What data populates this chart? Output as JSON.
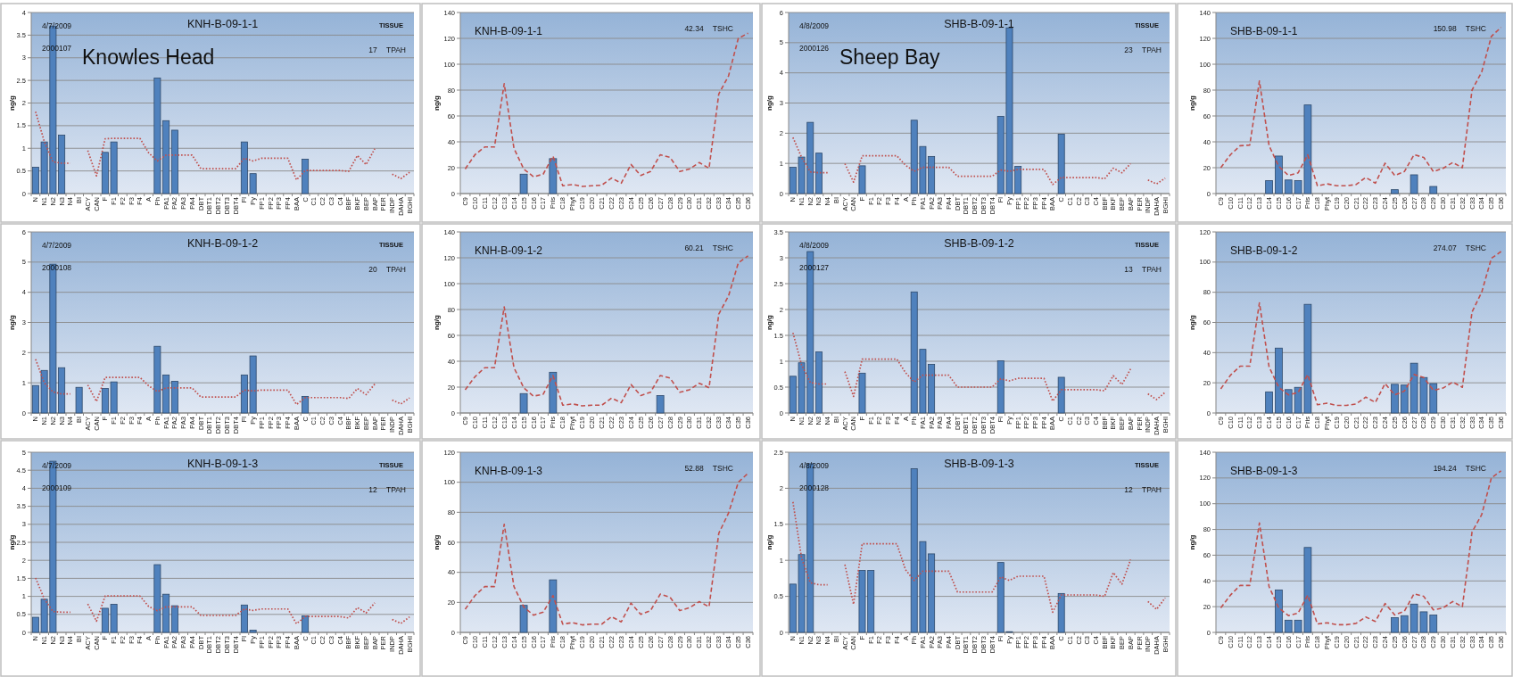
{
  "chart_data": [
    {
      "type": "bar",
      "title": "KNH-B-09-1-1",
      "ylabel": "ng/g",
      "annotations": [
        "4/7/2009",
        "2000107",
        "TISSUE",
        "17 TPAH",
        "Knowles Head"
      ],
      "categories": [
        "N",
        "N1",
        "N2",
        "N3",
        "N4",
        "BI",
        "ACY",
        "CAN",
        "F",
        "F1",
        "F2",
        "F3",
        "F4",
        "A",
        "Ph",
        "PA1",
        "PA2",
        "PA3",
        "PA4",
        "DBT",
        "DBT1",
        "DBT2",
        "DBT3",
        "DBT4",
        "Fl",
        "Py",
        "FP1",
        "FP2",
        "FP3",
        "FP4",
        "BAA",
        "C",
        "C1",
        "C2",
        "C3",
        "C4",
        "BBF",
        "BKF",
        "BEP",
        "BAP",
        "PER",
        "INDP",
        "DAHA",
        "BGHI"
      ],
      "series": [
        {
          "color": "#4f81bd",
          "values": [
            0.58,
            1.14,
            3.7,
            1.29,
            null,
            null,
            null,
            null,
            0.91,
            1.14,
            null,
            null,
            null,
            null,
            2.55,
            1.61,
            1.4,
            null,
            null,
            null,
            null,
            null,
            null,
            null,
            1.14,
            0.44,
            null,
            null,
            null,
            null,
            null,
            0.76,
            null,
            null,
            null,
            null,
            null,
            null,
            null,
            null,
            null,
            null,
            null,
            null
          ]
        },
        {
          "type": "line",
          "color": "#c0504d",
          "values": [
            1.81,
            1.15,
            0.7,
            0.67,
            0.67,
            null,
            0.95,
            0.39,
            1.21,
            1.22,
            1.22,
            1.22,
            1.22,
            0.9,
            0.72,
            0.85,
            0.85,
            0.85,
            0.85,
            0.55,
            0.55,
            0.55,
            0.55,
            0.55,
            0.78,
            0.72,
            0.78,
            0.78,
            0.78,
            0.78,
            0.3,
            0.51,
            0.51,
            0.51,
            0.51,
            0.51,
            0.49,
            0.84,
            0.64,
            0.99,
            null,
            0.43,
            0.33,
            0.47
          ]
        }
      ],
      "ylim": [
        0,
        4
      ],
      "yticks": [
        0,
        0.5,
        1,
        1.5,
        2,
        2.5,
        3,
        3.5,
        4
      ],
      "grid": "y",
      "line_style": "dotted"
    },
    {
      "type": "bar",
      "title": "KNH-B-09-1-1",
      "ylabel": "ng/g",
      "annotations": [
        "42.34 TSHC"
      ],
      "categories": [
        "C9",
        "C10",
        "C11",
        "C12",
        "C13",
        "C14",
        "C15",
        "C16",
        "C17",
        "Pris",
        "C18",
        "Phyt",
        "C19",
        "C20",
        "C21",
        "C22",
        "C23",
        "C24",
        "C25",
        "C26",
        "C27",
        "C28",
        "C29",
        "C30",
        "C31",
        "C32",
        "C33",
        "C34",
        "C35",
        "C36"
      ],
      "series": [
        {
          "color": "#4f81bd",
          "values": [
            null,
            null,
            null,
            null,
            null,
            null,
            15,
            null,
            null,
            27,
            null,
            null,
            null,
            null,
            null,
            null,
            null,
            null,
            null,
            null,
            null,
            null,
            null,
            null,
            null,
            null,
            null,
            null,
            null,
            null
          ]
        },
        {
          "type": "line",
          "color": "#c0504d",
          "values": [
            19,
            30,
            36,
            36,
            85,
            35,
            19,
            13,
            15,
            29,
            6,
            7,
            5.5,
            6,
            6.5,
            12,
            8,
            22.5,
            14,
            17,
            30,
            28,
            17,
            19,
            24,
            19.5,
            77,
            91,
            120,
            124
          ]
        }
      ],
      "ylim": [
        0,
        140
      ],
      "yticks": [
        0,
        20,
        40,
        60,
        80,
        100,
        120,
        140
      ],
      "grid": "y",
      "line_style": "dashed"
    },
    {
      "type": "bar",
      "title": "SHB-B-09-1-1",
      "ylabel": "ng/g",
      "annotations": [
        "4/8/2009",
        "2000126",
        "TISSUE",
        "23 TPAH",
        "Sheep Bay"
      ],
      "categories": [
        "N",
        "N1",
        "N2",
        "N3",
        "N4",
        "BI",
        "ACY",
        "CAN",
        "F",
        "F1",
        "F2",
        "F3",
        "F4",
        "A",
        "Ph",
        "PA1",
        "PA2",
        "PA3",
        "PA4",
        "DBT",
        "DBT1",
        "DBT2",
        "DBT3",
        "DBT4",
        "Fl",
        "Py",
        "FP1",
        "FP2",
        "FP3",
        "FP4",
        "BAA",
        "C",
        "C1",
        "C2",
        "C3",
        "C4",
        "BBF",
        "BKF",
        "BEP",
        "BAP",
        "PER",
        "INDP",
        "DAHA",
        "BGHI"
      ],
      "series": [
        {
          "color": "#4f81bd",
          "values": [
            0.87,
            1.21,
            2.36,
            1.34,
            null,
            null,
            null,
            null,
            0.92,
            null,
            null,
            null,
            null,
            null,
            2.43,
            1.56,
            1.23,
            null,
            null,
            null,
            null,
            null,
            null,
            null,
            2.56,
            5.49,
            0.9,
            null,
            null,
            null,
            null,
            1.97,
            null,
            null,
            null,
            null,
            null,
            null,
            null,
            null,
            null,
            null,
            null,
            null
          ]
        },
        {
          "type": "line",
          "color": "#c0504d",
          "values": [
            1.86,
            1.2,
            0.72,
            0.69,
            0.69,
            null,
            0.99,
            0.38,
            1.25,
            1.25,
            1.25,
            1.25,
            1.25,
            0.94,
            0.74,
            0.87,
            0.87,
            0.87,
            0.87,
            0.57,
            0.57,
            0.57,
            0.57,
            0.57,
            0.78,
            0.74,
            0.8,
            0.8,
            0.8,
            0.8,
            0.3,
            0.53,
            0.53,
            0.53,
            0.53,
            0.53,
            0.49,
            0.84,
            0.69,
            0.99,
            null,
            0.45,
            0.32,
            0.51
          ]
        }
      ],
      "ylim": [
        0,
        6
      ],
      "yticks": [
        0,
        1,
        2,
        3,
        4,
        5,
        6
      ],
      "grid": "y",
      "line_style": "dotted"
    },
    {
      "type": "bar",
      "title": "SHB-B-09-1-1",
      "ylabel": "ng/g",
      "annotations": [
        "150.98 TSHC"
      ],
      "categories": [
        "C9",
        "C10",
        "C11",
        "C12",
        "C13",
        "C14",
        "C15",
        "C16",
        "C17",
        "Pris",
        "C18",
        "Phyt",
        "C19",
        "C20",
        "C21",
        "C22",
        "C23",
        "C24",
        "C25",
        "C26",
        "C27",
        "C28",
        "C29",
        "C30",
        "C31",
        "C32",
        "C33",
        "C34",
        "C35",
        "C36"
      ],
      "series": [
        {
          "color": "#4f81bd",
          "values": [
            null,
            null,
            null,
            null,
            null,
            10,
            29,
            10.5,
            10,
            68.5,
            null,
            null,
            null,
            null,
            null,
            null,
            null,
            null,
            3,
            null,
            14.5,
            null,
            5.5,
            null,
            null,
            null,
            null,
            null,
            null,
            null
          ]
        },
        {
          "type": "line",
          "color": "#c0504d",
          "values": [
            20,
            30,
            37,
            37.5,
            87,
            37,
            21,
            14,
            16,
            30,
            6,
            7.5,
            6,
            6,
            7,
            12.5,
            8,
            23.5,
            14,
            17,
            30,
            28,
            17,
            19.5,
            24,
            20,
            80,
            94,
            121.5,
            128.5
          ]
        }
      ],
      "ylim": [
        0,
        140
      ],
      "yticks": [
        0,
        20,
        40,
        60,
        80,
        100,
        120,
        140
      ],
      "grid": "y",
      "line_style": "dashed"
    },
    {
      "type": "bar",
      "title": "KNH-B-09-1-2",
      "ylabel": "ng/g",
      "annotations": [
        "4/7/2009",
        "2000108",
        "TISSUE",
        "20 TPAH"
      ],
      "categories": [
        "N",
        "N1",
        "N2",
        "N3",
        "N4",
        "BI",
        "ACY",
        "CAN",
        "F",
        "F1",
        "F2",
        "F3",
        "F4",
        "A",
        "Ph",
        "PA1",
        "PA2",
        "PA3",
        "PA4",
        "DBT",
        "DBT1",
        "DBT2",
        "DBT3",
        "DBT4",
        "Fl",
        "Py",
        "FP1",
        "FP2",
        "FP3",
        "FP4",
        "BAA",
        "C",
        "C1",
        "C2",
        "C3",
        "C4",
        "BBF",
        "BKF",
        "BEP",
        "BAP",
        "PER",
        "INDP",
        "DAHA",
        "BGHI"
      ],
      "series": [
        {
          "color": "#4f81bd",
          "values": [
            0.91,
            1.41,
            4.93,
            1.5,
            null,
            0.85,
            null,
            null,
            0.81,
            1.03,
            null,
            null,
            null,
            null,
            2.21,
            1.26,
            1.05,
            null,
            null,
            null,
            null,
            null,
            null,
            null,
            1.26,
            1.89,
            null,
            null,
            null,
            null,
            null,
            0.55,
            null,
            null,
            null,
            null,
            null,
            null,
            null,
            null,
            null,
            null,
            null,
            null
          ]
        },
        {
          "type": "line",
          "color": "#c0504d",
          "values": [
            1.78,
            1.0,
            0.7,
            0.63,
            0.63,
            null,
            0.93,
            0.38,
            1.18,
            1.18,
            1.18,
            1.18,
            1.18,
            0.9,
            0.71,
            0.83,
            0.83,
            0.83,
            0.83,
            0.53,
            0.53,
            0.53,
            0.53,
            0.53,
            0.76,
            0.73,
            0.76,
            0.76,
            0.76,
            0.76,
            0.28,
            0.51,
            0.51,
            0.51,
            0.51,
            0.51,
            0.48,
            0.81,
            0.61,
            0.96,
            null,
            0.43,
            0.3,
            0.5
          ]
        }
      ],
      "ylim": [
        0,
        6
      ],
      "yticks": [
        0,
        1,
        2,
        3,
        4,
        5,
        6
      ],
      "grid": "y",
      "line_style": "dotted"
    },
    {
      "type": "bar",
      "title": "KNH-B-09-1-2",
      "ylabel": "ng/g",
      "annotations": [
        "60.21 TSHC"
      ],
      "categories": [
        "C9",
        "C10",
        "C11",
        "C12",
        "C13",
        "C14",
        "C15",
        "C16",
        "C17",
        "Pris",
        "C18",
        "Phyt",
        "C19",
        "C20",
        "C21",
        "C22",
        "C23",
        "C24",
        "C25",
        "C26",
        "C27",
        "C28",
        "C29",
        "C30",
        "C31",
        "C32",
        "C33",
        "C34",
        "C35",
        "C36"
      ],
      "series": [
        {
          "color": "#4f81bd",
          "values": [
            null,
            null,
            null,
            null,
            null,
            null,
            15,
            null,
            null,
            31.5,
            null,
            null,
            null,
            null,
            null,
            null,
            null,
            null,
            null,
            null,
            13.5,
            null,
            null,
            null,
            null,
            null,
            null,
            null,
            null,
            null
          ]
        },
        {
          "type": "line",
          "color": "#c0504d",
          "values": [
            18,
            28,
            35,
            35,
            82,
            35,
            19.5,
            13,
            14.5,
            29,
            6,
            7,
            5.5,
            6,
            6,
            11.5,
            8,
            22,
            13.5,
            16,
            29,
            27,
            16,
            18,
            23,
            19.5,
            76.5,
            90.5,
            116,
            121.5
          ]
        }
      ],
      "ylim": [
        0,
        140
      ],
      "yticks": [
        0,
        20,
        40,
        60,
        80,
        100,
        120,
        140
      ],
      "grid": "y",
      "line_style": "dashed"
    },
    {
      "type": "bar",
      "title": "SHB-B-09-1-2",
      "ylabel": "ng/g",
      "annotations": [
        "4/8/2009",
        "2000127",
        "TISSUE",
        "13 TPAH"
      ],
      "categories": [
        "N",
        "N1",
        "N2",
        "N3",
        "N4",
        "BI",
        "ACY",
        "CAN",
        "F",
        "F1",
        "F2",
        "F3",
        "F4",
        "A",
        "Ph",
        "PA1",
        "PA2",
        "PA3",
        "PA4",
        "DBT",
        "DBT1",
        "DBT2",
        "DBT3",
        "DBT4",
        "Fl",
        "Py",
        "FP1",
        "FP2",
        "FP3",
        "FP4",
        "BAA",
        "C",
        "C1",
        "C2",
        "C3",
        "C4",
        "BBF",
        "BKF",
        "BEP",
        "BAP",
        "PER",
        "INDP",
        "DAHA",
        "BGHI"
      ],
      "series": [
        {
          "color": "#4f81bd",
          "values": [
            0.71,
            0.97,
            3.12,
            1.18,
            null,
            null,
            null,
            null,
            0.77,
            null,
            null,
            null,
            null,
            null,
            2.34,
            1.23,
            0.94,
            null,
            null,
            null,
            null,
            null,
            null,
            null,
            1.01,
            null,
            null,
            null,
            null,
            null,
            null,
            0.69,
            null,
            null,
            null,
            null,
            null,
            null,
            null,
            null,
            null,
            null,
            null,
            null
          ]
        },
        {
          "type": "line",
          "color": "#c0504d",
          "values": [
            1.55,
            0.93,
            0.59,
            0.56,
            0.56,
            null,
            0.8,
            0.32,
            1.04,
            1.04,
            1.04,
            1.04,
            1.04,
            0.78,
            0.6,
            0.73,
            0.73,
            0.73,
            0.73,
            0.5,
            0.5,
            0.5,
            0.5,
            0.5,
            0.66,
            0.62,
            0.67,
            0.67,
            0.67,
            0.67,
            0.23,
            0.45,
            0.45,
            0.45,
            0.45,
            0.45,
            0.43,
            0.72,
            0.55,
            0.85,
            null,
            0.37,
            0.26,
            0.4
          ]
        }
      ],
      "ylim": [
        0,
        3.5
      ],
      "yticks": [
        0,
        0.5,
        1,
        1.5,
        2,
        2.5,
        3,
        3.5
      ],
      "grid": "y",
      "line_style": "dotted"
    },
    {
      "type": "bar",
      "title": "SHB-B-09-1-2",
      "ylabel": "ng/g",
      "annotations": [
        "274.07 TSHC"
      ],
      "categories": [
        "C9",
        "C10",
        "C11",
        "C12",
        "C13",
        "C14",
        "C15",
        "C16",
        "C17",
        "Pris",
        "C18",
        "Phyt",
        "C19",
        "C20",
        "C21",
        "C22",
        "C23",
        "C24",
        "C25",
        "C26",
        "C27",
        "C28",
        "C29",
        "C30",
        "C31",
        "C32",
        "C33",
        "C34",
        "C35",
        "C36"
      ],
      "series": [
        {
          "color": "#4f81bd",
          "values": [
            null,
            null,
            null,
            null,
            null,
            14,
            43,
            15.5,
            17,
            72,
            null,
            null,
            null,
            null,
            null,
            null,
            null,
            null,
            19,
            18.5,
            33,
            23.5,
            19.5,
            null,
            null,
            null,
            null,
            null,
            null,
            null
          ]
        },
        {
          "type": "line",
          "color": "#c0504d",
          "values": [
            16,
            25,
            31,
            31,
            73,
            30.5,
            17,
            12,
            13.5,
            25.5,
            5.5,
            6.5,
            5,
            5,
            6,
            10.5,
            7,
            19.5,
            12,
            14.5,
            25.5,
            23.5,
            15,
            16.5,
            20.5,
            17,
            67,
            80,
            102.5,
            107
          ]
        }
      ],
      "ylim": [
        0,
        120
      ],
      "yticks": [
        0,
        20,
        40,
        60,
        80,
        100,
        120
      ],
      "grid": "y",
      "line_style": "dashed"
    },
    {
      "type": "bar",
      "title": "KNH-B-09-1-3",
      "ylabel": "ng/g",
      "annotations": [
        "4/7/2009",
        "2000109",
        "TISSUE",
        "12 TPAH"
      ],
      "categories": [
        "N",
        "N1",
        "N2",
        "N3",
        "N4",
        "BI",
        "ACY",
        "CAN",
        "F",
        "F1",
        "F2",
        "F3",
        "F4",
        "A",
        "Ph",
        "PA1",
        "PA2",
        "PA3",
        "PA4",
        "DBT",
        "DBT1",
        "DBT2",
        "DBT3",
        "DBT4",
        "Fl",
        "Py",
        "FP1",
        "FP2",
        "FP3",
        "FP4",
        "BAA",
        "C",
        "C1",
        "C2",
        "C3",
        "C4",
        "BBF",
        "BKF",
        "BEP",
        "BAP",
        "PER",
        "INDP",
        "DAHA",
        "BGHI"
      ],
      "series": [
        {
          "color": "#4f81bd",
          "values": [
            0.42,
            0.92,
            4.75,
            null,
            null,
            null,
            null,
            null,
            0.67,
            0.78,
            null,
            null,
            null,
            null,
            1.88,
            1.06,
            0.74,
            null,
            null,
            null,
            null,
            null,
            null,
            null,
            0.76,
            0.06,
            null,
            null,
            null,
            null,
            null,
            0.46,
            null,
            null,
            null,
            null,
            null,
            null,
            null,
            null,
            null,
            null,
            null,
            null
          ]
        },
        {
          "type": "line",
          "color": "#c0504d",
          "values": [
            1.51,
            0.93,
            0.58,
            0.56,
            0.56,
            null,
            0.79,
            0.31,
            1.01,
            1.01,
            1.01,
            1.01,
            1.01,
            0.72,
            0.6,
            0.71,
            0.71,
            0.71,
            0.71,
            0.47,
            0.47,
            0.47,
            0.47,
            0.47,
            0.65,
            0.61,
            0.65,
            0.65,
            0.65,
            0.65,
            0.24,
            0.44,
            0.44,
            0.44,
            0.44,
            0.44,
            0.4,
            0.69,
            0.54,
            0.82,
            null,
            0.36,
            0.25,
            0.43
          ]
        }
      ],
      "ylim": [
        0,
        5
      ],
      "yticks": [
        0,
        0.5,
        1,
        1.5,
        2,
        2.5,
        3,
        3.5,
        4,
        4.5,
        5
      ],
      "grid": "y",
      "line_style": "dotted"
    },
    {
      "type": "bar",
      "title": "KNH-B-09-1-3",
      "ylabel": "ng/g",
      "annotations": [
        "52.88 TSHC"
      ],
      "categories": [
        "C9",
        "C10",
        "C11",
        "C12",
        "C13",
        "C14",
        "C15",
        "C16",
        "C17",
        "Pris",
        "C18",
        "Phyt",
        "C19",
        "C20",
        "C21",
        "C22",
        "C23",
        "C24",
        "C25",
        "C26",
        "C27",
        "C28",
        "C29",
        "C30",
        "C31",
        "C32",
        "C33",
        "C34",
        "C35",
        "C36"
      ],
      "series": [
        {
          "color": "#4f81bd",
          "values": [
            null,
            null,
            null,
            null,
            null,
            null,
            18,
            null,
            null,
            35,
            null,
            null,
            null,
            null,
            null,
            null,
            null,
            null,
            null,
            null,
            null,
            null,
            null,
            null,
            null,
            null,
            null,
            null,
            null,
            null
          ]
        },
        {
          "type": "line",
          "color": "#c0504d",
          "values": [
            15.5,
            24.5,
            30.5,
            30.5,
            72,
            30.5,
            17,
            11.5,
            13.5,
            24.5,
            5.5,
            6.5,
            5,
            5.5,
            5.5,
            10.5,
            7,
            19.5,
            12,
            14.5,
            25.5,
            23.5,
            14.5,
            16.5,
            20.5,
            17,
            66,
            79.5,
            100,
            106
          ]
        }
      ],
      "ylim": [
        0,
        120
      ],
      "yticks": [
        0,
        20,
        40,
        60,
        80,
        100,
        120
      ],
      "grid": "y",
      "line_style": "dashed"
    },
    {
      "type": "bar",
      "title": "SHB-B-09-1-3",
      "ylabel": "ng/g",
      "annotations": [
        "4/8/2009",
        "2000128",
        "TISSUE",
        "12 TPAH"
      ],
      "categories": [
        "N",
        "N1",
        "N2",
        "N3",
        "N4",
        "BI",
        "ACY",
        "CAN",
        "F",
        "F1",
        "F2",
        "F3",
        "F4",
        "A",
        "Ph",
        "PA1",
        "PA2",
        "PA3",
        "PA4",
        "DBT",
        "DBT1",
        "DBT2",
        "DBT3",
        "DBT4",
        "Fl",
        "Py",
        "FP1",
        "FP2",
        "FP3",
        "FP4",
        "BAA",
        "C",
        "C1",
        "C2",
        "C3",
        "C4",
        "BBF",
        "BKF",
        "BEP",
        "BAP",
        "PER",
        "INDP",
        "DAHA",
        "BGHI"
      ],
      "series": [
        {
          "color": "#4f81bd",
          "values": [
            0.67,
            1.08,
            2.34,
            null,
            null,
            null,
            null,
            null,
            0.86,
            0.86,
            null,
            null,
            null,
            null,
            2.27,
            1.26,
            1.09,
            null,
            null,
            null,
            null,
            null,
            null,
            null,
            0.97,
            0.01,
            null,
            null,
            null,
            null,
            null,
            0.54,
            null,
            null,
            null,
            null,
            null,
            null,
            null,
            null,
            null,
            null,
            null,
            null
          ]
        },
        {
          "type": "line",
          "color": "#c0504d",
          "values": [
            1.81,
            1.03,
            0.69,
            0.66,
            0.66,
            null,
            0.94,
            0.39,
            1.23,
            1.23,
            1.23,
            1.23,
            1.23,
            0.87,
            0.72,
            0.85,
            0.85,
            0.85,
            0.85,
            0.56,
            0.56,
            0.56,
            0.56,
            0.56,
            0.77,
            0.72,
            0.78,
            0.78,
            0.78,
            0.78,
            0.28,
            0.52,
            0.52,
            0.52,
            0.52,
            0.52,
            0.5,
            0.83,
            0.67,
            1.01,
            null,
            0.43,
            0.32,
            0.48
          ]
        }
      ],
      "ylim": [
        0,
        2.5
      ],
      "yticks": [
        0,
        0.5,
        1,
        1.5,
        2,
        2.5
      ],
      "grid": "y",
      "line_style": "dotted"
    },
    {
      "type": "bar",
      "title": "SHB-B-09-1-3",
      "ylabel": "ng/g",
      "annotations": [
        "194.24 TSHC"
      ],
      "categories": [
        "C9",
        "C10",
        "C11",
        "C12",
        "C13",
        "C14",
        "C15",
        "C16",
        "C17",
        "Pris",
        "C18",
        "Phyt",
        "C19",
        "C20",
        "C21",
        "C22",
        "C23",
        "C24",
        "C25",
        "C26",
        "C27",
        "C28",
        "C29",
        "C30",
        "C31",
        "C32",
        "C33",
        "C34",
        "C35",
        "C36"
      ],
      "series": [
        {
          "color": "#4f81bd",
          "values": [
            null,
            null,
            null,
            null,
            null,
            null,
            33,
            9.5,
            9.5,
            66,
            null,
            null,
            null,
            null,
            null,
            null,
            null,
            null,
            11.5,
            13,
            22,
            16,
            13.5,
            null,
            null,
            null,
            null,
            null,
            null,
            null
          ]
        },
        {
          "type": "line",
          "color": "#c0504d",
          "values": [
            19,
            29,
            36.5,
            36.5,
            85,
            35.5,
            19,
            13,
            15,
            29,
            6.5,
            7.5,
            6,
            6,
            7,
            12,
            8.5,
            22.5,
            13.5,
            16.5,
            30,
            28,
            17.5,
            19,
            24,
            20,
            78,
            91.5,
            120,
            125.5
          ]
        }
      ],
      "ylim": [
        0,
        140
      ],
      "yticks": [
        0,
        20,
        40,
        60,
        80,
        100,
        120,
        140
      ],
      "grid": "y",
      "line_style": "dashed"
    }
  ]
}
